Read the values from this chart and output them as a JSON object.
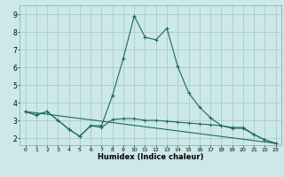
{
  "title": "",
  "xlabel": "Humidex (Indice chaleur)",
  "bg_color": "#cce8e8",
  "grid_color": "#aacccc",
  "line_color": "#1a6b5a",
  "xlim": [
    -0.5,
    23.5
  ],
  "ylim": [
    1.6,
    9.5
  ],
  "xticks": [
    0,
    1,
    2,
    3,
    4,
    5,
    6,
    7,
    8,
    9,
    10,
    11,
    12,
    13,
    14,
    15,
    16,
    17,
    18,
    19,
    20,
    21,
    22,
    23
  ],
  "yticks": [
    2,
    3,
    4,
    5,
    6,
    7,
    8,
    9
  ],
  "line1_x": [
    0,
    1,
    2,
    3,
    4,
    5,
    6,
    7,
    8,
    9,
    10,
    11,
    12,
    13,
    14,
    15,
    16,
    17,
    18,
    19,
    20,
    21,
    22,
    23
  ],
  "line1_y": [
    3.5,
    3.3,
    3.5,
    3.0,
    2.5,
    2.1,
    2.7,
    2.7,
    4.4,
    6.5,
    8.9,
    7.7,
    7.55,
    8.2,
    6.05,
    4.55,
    3.75,
    3.15,
    2.7,
    2.55,
    2.55,
    2.2,
    1.9,
    1.7
  ],
  "line2_x": [
    0,
    1,
    2,
    3,
    4,
    5,
    6,
    7,
    8,
    9,
    10,
    11,
    12,
    13,
    14,
    15,
    16,
    17,
    18,
    19,
    20,
    21,
    22,
    23
  ],
  "line2_y": [
    3.5,
    3.3,
    3.5,
    3.0,
    2.5,
    2.1,
    2.7,
    2.6,
    3.05,
    3.1,
    3.1,
    3.0,
    3.0,
    2.95,
    2.9,
    2.85,
    2.8,
    2.75,
    2.7,
    2.6,
    2.6,
    2.2,
    1.9,
    1.7
  ],
  "line3_x": [
    0,
    23
  ],
  "line3_y": [
    3.5,
    1.7
  ]
}
